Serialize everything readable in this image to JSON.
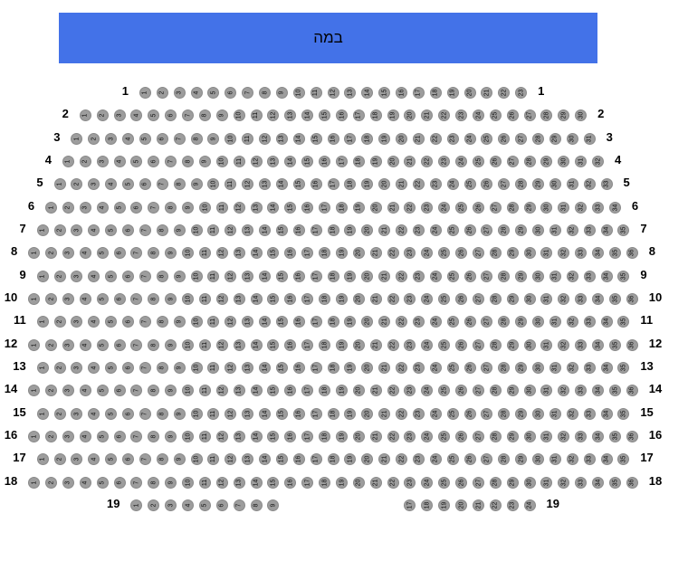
{
  "stage": {
    "label": "במה",
    "color": "#4372e8",
    "text_color": "#000000"
  },
  "seat_style": {
    "fill": "#9d9d9d",
    "border": "#8a8a8a",
    "number_color": "#111111"
  },
  "rows": [
    {
      "label": "1",
      "seats": [
        1,
        2,
        3,
        4,
        5,
        6,
        7,
        8,
        9,
        10,
        11,
        12,
        13,
        14,
        15,
        16,
        17,
        18,
        19,
        20,
        21,
        22,
        23
      ]
    },
    {
      "label": "2",
      "seats": [
        1,
        2,
        3,
        4,
        5,
        6,
        7,
        8,
        9,
        10,
        11,
        12,
        13,
        14,
        15,
        16,
        17,
        18,
        19,
        20,
        21,
        22,
        23,
        24,
        25,
        26,
        27,
        28,
        29,
        30
      ]
    },
    {
      "label": "3",
      "seats": [
        1,
        2,
        3,
        4,
        5,
        6,
        7,
        8,
        9,
        10,
        11,
        12,
        13,
        14,
        15,
        16,
        17,
        18,
        19,
        20,
        21,
        22,
        23,
        24,
        25,
        26,
        27,
        28,
        29,
        30,
        31
      ]
    },
    {
      "label": "4",
      "seats": [
        1,
        2,
        3,
        4,
        5,
        6,
        7,
        8,
        9,
        10,
        11,
        12,
        13,
        14,
        15,
        16,
        17,
        18,
        19,
        20,
        21,
        22,
        23,
        24,
        25,
        26,
        27,
        28,
        29,
        30,
        31,
        32
      ]
    },
    {
      "label": "5",
      "seats": [
        1,
        2,
        3,
        4,
        5,
        6,
        7,
        8,
        9,
        10,
        11,
        12,
        13,
        14,
        15,
        16,
        17,
        18,
        19,
        20,
        21,
        22,
        23,
        24,
        25,
        26,
        27,
        28,
        29,
        30,
        31,
        32,
        33
      ]
    },
    {
      "label": "6",
      "seats": [
        1,
        2,
        3,
        4,
        5,
        6,
        7,
        8,
        9,
        10,
        11,
        12,
        13,
        14,
        15,
        16,
        17,
        18,
        19,
        20,
        21,
        22,
        23,
        24,
        25,
        26,
        27,
        28,
        29,
        30,
        31,
        32,
        33,
        34
      ]
    },
    {
      "label": "7",
      "seats": [
        1,
        2,
        3,
        4,
        5,
        6,
        7,
        8,
        9,
        10,
        11,
        12,
        13,
        14,
        15,
        16,
        17,
        18,
        19,
        20,
        21,
        22,
        23,
        24,
        25,
        26,
        27,
        28,
        29,
        30,
        31,
        32,
        33,
        34,
        35
      ]
    },
    {
      "label": "8",
      "seats": [
        1,
        2,
        3,
        4,
        5,
        6,
        7,
        8,
        9,
        10,
        11,
        12,
        13,
        14,
        15,
        16,
        17,
        18,
        19,
        20,
        21,
        22,
        23,
        24,
        25,
        26,
        27,
        28,
        29,
        30,
        31,
        32,
        33,
        34,
        35,
        36
      ]
    },
    {
      "label": "9",
      "seats": [
        1,
        2,
        3,
        4,
        5,
        6,
        7,
        8,
        9,
        10,
        11,
        12,
        13,
        14,
        15,
        16,
        17,
        18,
        19,
        20,
        21,
        22,
        23,
        24,
        25,
        26,
        27,
        28,
        29,
        30,
        31,
        32,
        33,
        34,
        35
      ]
    },
    {
      "label": "10",
      "seats": [
        1,
        2,
        3,
        4,
        5,
        6,
        7,
        8,
        9,
        10,
        11,
        12,
        13,
        14,
        15,
        16,
        17,
        18,
        19,
        20,
        21,
        22,
        23,
        24,
        25,
        26,
        27,
        28,
        29,
        30,
        31,
        32,
        33,
        34,
        35,
        36
      ]
    },
    {
      "label": "11",
      "seats": [
        1,
        2,
        3,
        4,
        5,
        6,
        7,
        8,
        9,
        10,
        11,
        12,
        13,
        14,
        15,
        16,
        17,
        18,
        19,
        20,
        21,
        22,
        23,
        24,
        25,
        26,
        27,
        28,
        29,
        30,
        31,
        32,
        33,
        34,
        35
      ]
    },
    {
      "label": "12",
      "seats": [
        1,
        2,
        3,
        4,
        5,
        6,
        7,
        8,
        9,
        10,
        11,
        12,
        13,
        14,
        15,
        16,
        17,
        18,
        19,
        20,
        21,
        22,
        23,
        24,
        25,
        26,
        27,
        28,
        29,
        30,
        31,
        32,
        33,
        34,
        35,
        36
      ]
    },
    {
      "label": "13",
      "seats": [
        1,
        2,
        3,
        4,
        5,
        6,
        7,
        8,
        9,
        10,
        11,
        12,
        13,
        14,
        15,
        16,
        17,
        18,
        19,
        20,
        21,
        22,
        23,
        24,
        25,
        26,
        27,
        28,
        29,
        30,
        31,
        32,
        33,
        34,
        35
      ]
    },
    {
      "label": "14",
      "seats": [
        1,
        2,
        3,
        4,
        5,
        6,
        7,
        8,
        9,
        10,
        11,
        12,
        13,
        14,
        15,
        16,
        17,
        18,
        19,
        20,
        21,
        22,
        23,
        24,
        25,
        26,
        27,
        28,
        29,
        30,
        31,
        32,
        33,
        34,
        35,
        36
      ]
    },
    {
      "label": "15",
      "seats": [
        1,
        2,
        3,
        4,
        5,
        6,
        7,
        8,
        9,
        10,
        11,
        12,
        13,
        14,
        15,
        16,
        17,
        18,
        19,
        20,
        21,
        22,
        23,
        24,
        25,
        26,
        27,
        28,
        29,
        30,
        31,
        32,
        33,
        34,
        35
      ]
    },
    {
      "label": "16",
      "seats": [
        1,
        2,
        3,
        4,
        5,
        6,
        7,
        8,
        9,
        10,
        11,
        12,
        13,
        14,
        15,
        16,
        17,
        18,
        19,
        20,
        21,
        22,
        23,
        24,
        25,
        26,
        27,
        28,
        29,
        30,
        31,
        32,
        33,
        34,
        35,
        36
      ]
    },
    {
      "label": "17",
      "seats": [
        1,
        2,
        3,
        4,
        5,
        6,
        7,
        8,
        9,
        10,
        11,
        12,
        13,
        14,
        15,
        16,
        17,
        18,
        19,
        20,
        21,
        22,
        23,
        24,
        25,
        26,
        27,
        28,
        29,
        30,
        31,
        32,
        33,
        34,
        35
      ]
    },
    {
      "label": "18",
      "seats": [
        1,
        2,
        3,
        4,
        5,
        6,
        7,
        8,
        9,
        10,
        11,
        12,
        13,
        14,
        15,
        16,
        17,
        18,
        19,
        20,
        21,
        22,
        23,
        24,
        25,
        26,
        27,
        28,
        29,
        30,
        31,
        32,
        33,
        34,
        35,
        36
      ]
    },
    {
      "label": "19",
      "seats": [
        1,
        2,
        3,
        4,
        5,
        6,
        7,
        8,
        9,
        null,
        null,
        null,
        null,
        null,
        null,
        null,
        17,
        18,
        19,
        20,
        21,
        22,
        23,
        24
      ]
    }
  ]
}
